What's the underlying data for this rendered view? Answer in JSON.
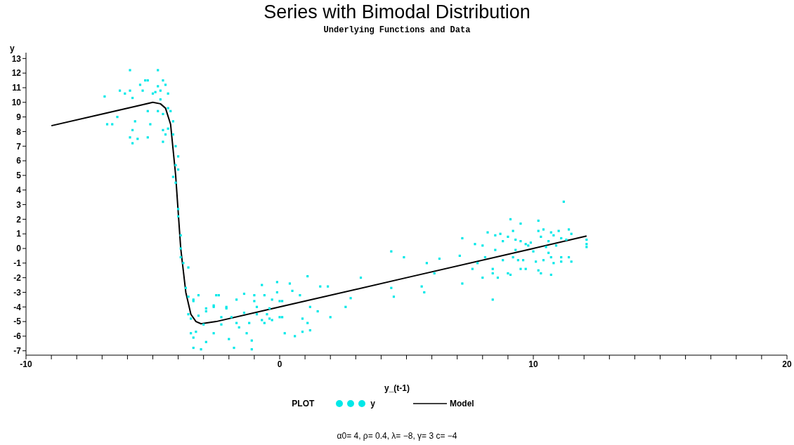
{
  "chart_data": {
    "type": "scatter",
    "title": "Series with Bimodal Distribution",
    "subtitle": "Underlying Functions and Data",
    "xlabel": "y_(t-1)",
    "ylabel": "y",
    "legend_title": "PLOT",
    "legend": "bottom",
    "annotations": [
      "α0= 4, ρ= 0.4, λ= −8, γ= 3 c= −4"
    ],
    "xlim": [
      -10,
      20
    ],
    "xticks": [
      -10,
      {
        "value": -9,
        "label": null
      },
      {
        "value": -8,
        "label": null
      },
      {
        "value": -7,
        "label": null
      },
      {
        "value": -6,
        "label": null
      },
      {
        "value": -5,
        "label": null
      },
      {
        "value": -4,
        "label": null
      },
      {
        "value": -3,
        "label": null
      },
      {
        "value": -2,
        "label": null
      },
      {
        "value": -1,
        "label": null
      },
      0,
      {
        "value": 1,
        "label": null
      },
      {
        "value": 2,
        "label": null
      },
      {
        "value": 3,
        "label": null
      },
      {
        "value": 4,
        "label": null
      },
      {
        "value": 5,
        "label": null
      },
      {
        "value": 6,
        "label": null
      },
      {
        "value": 7,
        "label": null
      },
      {
        "value": 8,
        "label": null
      },
      {
        "value": 9,
        "label": null
      },
      10,
      {
        "value": 11,
        "label": null
      },
      {
        "value": 12,
        "label": null
      },
      {
        "value": 13,
        "label": null
      },
      {
        "value": 14,
        "label": null
      },
      {
        "value": 15,
        "label": null
      },
      {
        "value": 16,
        "label": null
      },
      {
        "value": 17,
        "label": null
      },
      {
        "value": 18,
        "label": null
      },
      {
        "value": 19,
        "label": null
      },
      20
    ],
    "ylim": [
      -7.3,
      13.4
    ],
    "yticks": [
      -7,
      -6,
      -5,
      -4,
      -3,
      -2,
      -1,
      0,
      1,
      2,
      3,
      4,
      5,
      6,
      7,
      8,
      9,
      10,
      11,
      12,
      13
    ],
    "series": [
      {
        "name": "y",
        "color": "#00e8e8",
        "marker": "square",
        "x": [
          -6.9,
          -5.9,
          -4.8,
          -6.8,
          -6.6,
          -6.4,
          -6.3,
          -6.1,
          -5.9,
          -5.8,
          -5.9,
          -5.8,
          -5.6,
          -5.8,
          -5.7,
          -5.5,
          -5.4,
          -5.3,
          -5.2,
          -5.2,
          -5.1,
          -5.2,
          -5.0,
          -4.9,
          -4.8,
          -4.7,
          -4.6,
          -4.5,
          -4.4,
          -4.7,
          -4.8,
          -4.6,
          -4.4,
          -4.3,
          -4.2,
          -4.6,
          -4.5,
          -4.6,
          -4.4,
          -4.2,
          -4.1,
          -4.0,
          -4.1,
          -4.2,
          -4.0,
          -4.1,
          -4.0,
          -4.0,
          -3.9,
          -3.9,
          -3.9,
          -3.8,
          -3.6,
          -3.7,
          -3.6,
          -3.4,
          -3.2,
          -3.6,
          -3.5,
          -3.5,
          -3.4,
          -3.3,
          -3.2,
          -3.0,
          -3.1,
          -3.4,
          -2.9,
          -2.9,
          -2.5,
          -2.6,
          -2.6,
          -2.3,
          -2.1,
          -2.0,
          -1.8,
          -1.7,
          -1.4,
          -1.3,
          -1.1,
          -1.0,
          -0.9,
          -0.7,
          -0.6,
          -0.4,
          -0.1,
          -0.3,
          0.0,
          0.2,
          0.1,
          0.4,
          0.5,
          0.6,
          0.8,
          0.9,
          0.9,
          1.1,
          1.2,
          1.2,
          1.1,
          1.6,
          1.9,
          1.5,
          2.0,
          2.6,
          2.8,
          3.2,
          4.4,
          4.9,
          4.4,
          4.5,
          5.6,
          5.7,
          5.8,
          6.3,
          6.1,
          -3.4,
          -2.9,
          -2.6,
          -2.4,
          -2.3,
          -2.1,
          -1.9,
          -1.7,
          -1.6,
          -1.4,
          -1.2,
          -1.1,
          -1.0,
          -0.9,
          -0.7,
          -0.6,
          -0.5,
          -0.4,
          -0.3,
          -0.1,
          0.0,
          0.1,
          7.1,
          7.2,
          7.2,
          7.6,
          7.7,
          7.8,
          8.0,
          8.0,
          8.1,
          8.2,
          8.4,
          8.4,
          8.4,
          8.5,
          8.5,
          8.6,
          8.7,
          8.8,
          8.8,
          9.0,
          9.0,
          9.1,
          9.1,
          9.2,
          9.2,
          9.3,
          9.3,
          9.4,
          9.5,
          9.5,
          9.5,
          9.6,
          9.7,
          9.7,
          9.8,
          9.9,
          10.0,
          10.1,
          10.2,
          10.2,
          10.2,
          10.3,
          10.3,
          10.4,
          10.4,
          10.5,
          10.6,
          10.6,
          10.7,
          10.7,
          10.7,
          10.8,
          10.8,
          10.9,
          11.0,
          11.1,
          11.1,
          11.1,
          11.2,
          11.3,
          11.4,
          11.4,
          11.5,
          11.5,
          12.1,
          12.1,
          12.1
        ],
        "values": [
          10.4,
          12.2,
          12.2,
          8.5,
          8.5,
          9.0,
          10.8,
          10.6,
          10.8,
          10.3,
          7.6,
          7.2,
          7.5,
          8.1,
          8.7,
          11.2,
          10.8,
          11.5,
          11.5,
          7.6,
          8.5,
          9.4,
          10.6,
          10.7,
          11.1,
          10.8,
          11.5,
          11.2,
          10.6,
          10.2,
          9.4,
          9.2,
          9.6,
          9.4,
          8.7,
          8.1,
          7.8,
          7.3,
          8.2,
          7.8,
          7.0,
          6.3,
          5.7,
          4.9,
          5.4,
          4.5,
          2.7,
          2.2,
          0.9,
          0.0,
          -0.6,
          -1.0,
          -1.3,
          -2.7,
          -3.3,
          -3.5,
          -3.2,
          -4.5,
          -4.8,
          -5.8,
          -6.1,
          -5.7,
          -4.6,
          -5.2,
          -6.9,
          -6.8,
          -4.1,
          -6.4,
          -3.2,
          -4.0,
          -5.8,
          -4.7,
          -4.1,
          -6.2,
          -6.8,
          -5.1,
          -3.1,
          -5.8,
          -6.9,
          -3.2,
          -4.5,
          -2.5,
          -5.1,
          -4.8,
          -2.3,
          -3.5,
          -3.6,
          -5.8,
          -4.7,
          -2.4,
          -2.9,
          -6.0,
          -3.2,
          -4.8,
          -5.7,
          -1.9,
          -5.6,
          -4.0,
          -5.1,
          -2.6,
          -2.6,
          -4.3,
          -4.7,
          -4.0,
          -3.4,
          -2.0,
          -0.2,
          -0.6,
          -2.7,
          -3.3,
          -2.6,
          -3.0,
          -1.0,
          -0.7,
          -1.7,
          -3.6,
          -4.3,
          -3.9,
          -3.2,
          -5.2,
          -4.0,
          -4.7,
          -3.5,
          -5.4,
          -4.4,
          -5.1,
          -6.3,
          -3.6,
          -4.0,
          -4.9,
          -3.2,
          -4.5,
          -4.1,
          -4.9,
          -3.0,
          -4.7,
          -3.6,
          -0.5,
          0.7,
          -2.4,
          -1.4,
          0.3,
          -1.0,
          0.2,
          -2.0,
          -0.6,
          1.1,
          -1.7,
          -3.5,
          -1.4,
          -0.1,
          0.9,
          -2.0,
          1.0,
          -0.8,
          0.5,
          -1.7,
          0.8,
          2.0,
          -1.8,
          -0.6,
          1.2,
          0.6,
          -0.1,
          -0.8,
          1.7,
          -1.4,
          0.5,
          -0.8,
          -1.4,
          0.3,
          0.2,
          0.4,
          -0.2,
          -0.9,
          1.9,
          -1.5,
          1.2,
          -1.7,
          0.8,
          -0.8,
          1.3,
          0.1,
          -0.3,
          0.5,
          -0.6,
          1.1,
          -1.8,
          -1.0,
          0.9,
          0.2,
          1.2,
          -0.6,
          0.7,
          -0.9,
          3.2,
          0.6,
          -0.6,
          1.3,
          -0.9,
          1.0,
          0.6,
          0.1,
          0.3
        ]
      },
      {
        "name": "Model",
        "type": "line",
        "color": "#000000",
        "marker": "none",
        "line_style": "solid",
        "x": [
          -9,
          -7,
          -5.5,
          -5,
          -4.7,
          -4.5,
          -4.3,
          -4.1,
          -3.9,
          -3.7,
          -3.5,
          -3.3,
          -3.1,
          -2.5,
          0,
          5,
          10,
          12.1
        ],
        "values": [
          8.4,
          9.2,
          9.8,
          10,
          9.9,
          9.6,
          8.5,
          5,
          0,
          -3,
          -4.5,
          -5,
          -5.15,
          -5,
          -4,
          -2,
          0,
          0.85
        ]
      }
    ]
  }
}
